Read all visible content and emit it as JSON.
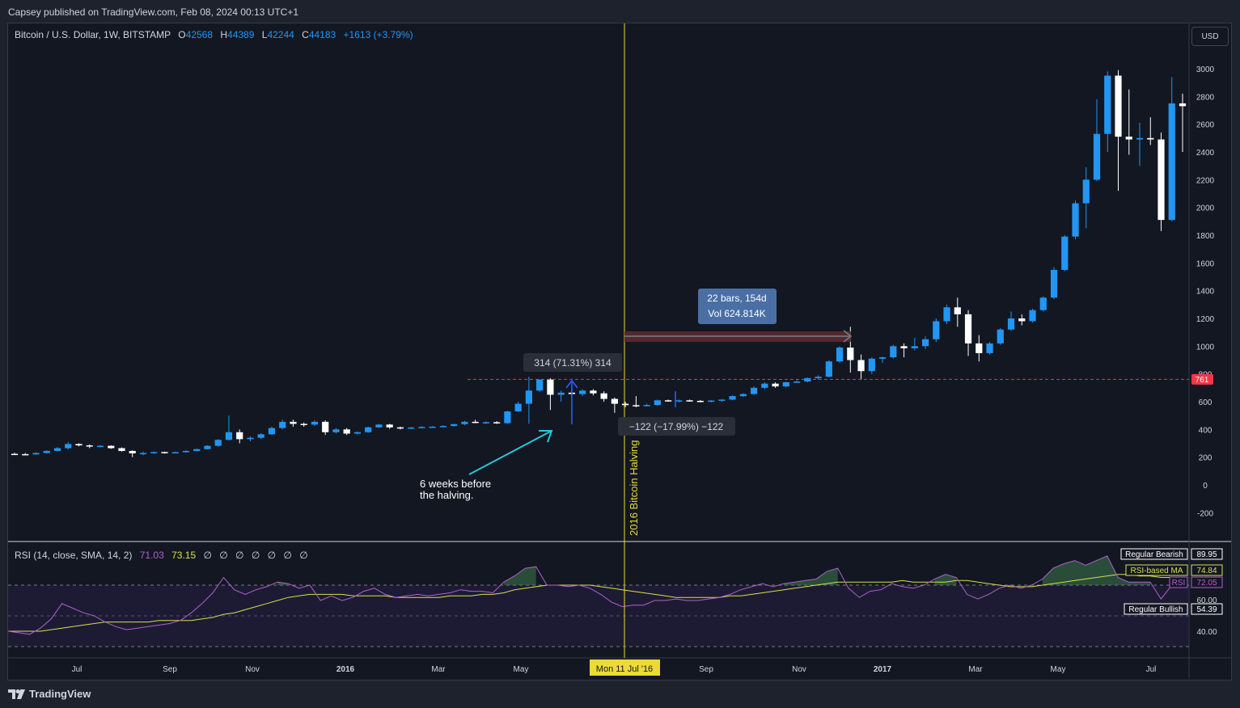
{
  "header": {
    "published": "Capsey published on TradingView.com, Feb 08, 2024 00:13 UTC+1"
  },
  "legend": {
    "symbol": "Bitcoin / U.S. Dollar, 1W, BITSTAMP",
    "o_label": "O",
    "o": "42568",
    "h_label": "H",
    "h": "44389",
    "l_label": "L",
    "l": "42244",
    "c_label": "C",
    "c": "44183",
    "change": "+1613 (+3.79%)"
  },
  "currency_button": "USD",
  "rsi_legend": {
    "label": "RSI (14, close, SMA, 14, 2)",
    "rsi": "71.03",
    "ma": "73.15",
    "empties": "∅ ∅ ∅ ∅ ∅ ∅ ∅"
  },
  "annotations": {
    "measure_up": "314 (71.31%) 314",
    "measure_down": "−122 (−17.99%) −122",
    "range_line1": "22 bars, 154d",
    "range_line2": "Vol 624.814K",
    "note_line1": "6 weeks before",
    "note_line2": "the halving.",
    "vline_label": "2016 Bitcoin Halving",
    "hline_value": "761",
    "date_marker": "Mon 11 Jul '16"
  },
  "rsi_tags": {
    "regular_bearish": "Regular Bearish",
    "regular_bearish_val": "89.95",
    "rsi_ma": "RSI-based MA",
    "rsi_ma_val": "74.84",
    "rsi": "RSI",
    "rsi_val": "72.05",
    "regular_bullish": "Regular Bullish",
    "regular_bullish_val": "54.39"
  },
  "footer": {
    "brand": "TradingView"
  },
  "colors": {
    "up": "#2196f3",
    "down": "#ffffff",
    "bg": "#131722",
    "vline": "#ebdb34",
    "rsi": "#b061d0",
    "rsi_ma": "#d7e04d",
    "hline": "#f23645"
  },
  "chart_data": {
    "type": "candlestick",
    "timeframe": "1W",
    "ylim": [
      -300,
      3300
    ],
    "y_ticks": [
      "-200",
      "0",
      "200",
      "400",
      "600",
      "800",
      "1000",
      "1200",
      "1400",
      "1600",
      "1800",
      "2000",
      "2200",
      "2400",
      "2600",
      "2800",
      "3000"
    ],
    "x_ticks": [
      "Jul",
      "Sep",
      "Nov",
      "2016",
      "Mar",
      "May",
      "Sep",
      "Nov",
      "2017",
      "Mar",
      "May",
      "Jul"
    ],
    "candles": [
      {
        "o": 224,
        "h": 232,
        "l": 216,
        "c": 222
      },
      {
        "o": 222,
        "h": 230,
        "l": 215,
        "c": 220
      },
      {
        "o": 220,
        "h": 235,
        "l": 217,
        "c": 230
      },
      {
        "o": 230,
        "h": 250,
        "l": 226,
        "c": 245
      },
      {
        "o": 245,
        "h": 272,
        "l": 240,
        "c": 265
      },
      {
        "o": 265,
        "h": 310,
        "l": 255,
        "c": 295
      },
      {
        "o": 295,
        "h": 300,
        "l": 278,
        "c": 285
      },
      {
        "o": 285,
        "h": 292,
        "l": 265,
        "c": 280
      },
      {
        "o": 280,
        "h": 288,
        "l": 270,
        "c": 282
      },
      {
        "o": 282,
        "h": 285,
        "l": 260,
        "c": 265
      },
      {
        "o": 265,
        "h": 270,
        "l": 240,
        "c": 245
      },
      {
        "o": 245,
        "h": 250,
        "l": 200,
        "c": 228
      },
      {
        "o": 228,
        "h": 240,
        "l": 215,
        "c": 230
      },
      {
        "o": 230,
        "h": 240,
        "l": 225,
        "c": 237
      },
      {
        "o": 237,
        "h": 240,
        "l": 226,
        "c": 232
      },
      {
        "o": 232,
        "h": 240,
        "l": 228,
        "c": 236
      },
      {
        "o": 236,
        "h": 250,
        "l": 232,
        "c": 245
      },
      {
        "o": 245,
        "h": 262,
        "l": 240,
        "c": 258
      },
      {
        "o": 258,
        "h": 285,
        "l": 255,
        "c": 282
      },
      {
        "o": 282,
        "h": 330,
        "l": 275,
        "c": 325
      },
      {
        "o": 325,
        "h": 500,
        "l": 320,
        "c": 380
      },
      {
        "o": 380,
        "h": 400,
        "l": 300,
        "c": 330
      },
      {
        "o": 330,
        "h": 350,
        "l": 315,
        "c": 340
      },
      {
        "o": 340,
        "h": 372,
        "l": 330,
        "c": 365
      },
      {
        "o": 365,
        "h": 420,
        "l": 360,
        "c": 410
      },
      {
        "o": 410,
        "h": 470,
        "l": 400,
        "c": 455
      },
      {
        "o": 455,
        "h": 470,
        "l": 420,
        "c": 440
      },
      {
        "o": 440,
        "h": 450,
        "l": 420,
        "c": 435
      },
      {
        "o": 435,
        "h": 465,
        "l": 425,
        "c": 455
      },
      {
        "o": 455,
        "h": 465,
        "l": 360,
        "c": 380
      },
      {
        "o": 380,
        "h": 410,
        "l": 370,
        "c": 400
      },
      {
        "o": 400,
        "h": 410,
        "l": 360,
        "c": 370
      },
      {
        "o": 370,
        "h": 385,
        "l": 365,
        "c": 380
      },
      {
        "o": 380,
        "h": 420,
        "l": 375,
        "c": 415
      },
      {
        "o": 415,
        "h": 440,
        "l": 410,
        "c": 435
      },
      {
        "o": 435,
        "h": 440,
        "l": 405,
        "c": 415
      },
      {
        "o": 415,
        "h": 420,
        "l": 400,
        "c": 408
      },
      {
        "o": 408,
        "h": 418,
        "l": 402,
        "c": 414
      },
      {
        "o": 414,
        "h": 422,
        "l": 408,
        "c": 418
      },
      {
        "o": 418,
        "h": 424,
        "l": 412,
        "c": 420
      },
      {
        "o": 420,
        "h": 430,
        "l": 414,
        "c": 425
      },
      {
        "o": 425,
        "h": 440,
        "l": 420,
        "c": 438
      },
      {
        "o": 438,
        "h": 462,
        "l": 430,
        "c": 455
      },
      {
        "o": 455,
        "h": 470,
        "l": 445,
        "c": 450
      },
      {
        "o": 450,
        "h": 458,
        "l": 440,
        "c": 452
      },
      {
        "o": 452,
        "h": 460,
        "l": 440,
        "c": 445
      },
      {
        "o": 445,
        "h": 535,
        "l": 440,
        "c": 530
      },
      {
        "o": 530,
        "h": 600,
        "l": 525,
        "c": 585
      },
      {
        "o": 585,
        "h": 780,
        "l": 440,
        "c": 680
      },
      {
        "o": 680,
        "h": 760,
        "l": 670,
        "c": 760
      },
      {
        "o": 760,
        "h": 770,
        "l": 540,
        "c": 650
      },
      {
        "o": 650,
        "h": 680,
        "l": 600,
        "c": 665
      },
      {
        "o": 665,
        "h": 690,
        "l": 630,
        "c": 655
      },
      {
        "o": 655,
        "h": 690,
        "l": 640,
        "c": 680
      },
      {
        "o": 680,
        "h": 690,
        "l": 645,
        "c": 660
      },
      {
        "o": 660,
        "h": 675,
        "l": 600,
        "c": 620
      },
      {
        "o": 620,
        "h": 630,
        "l": 520,
        "c": 585
      },
      {
        "o": 585,
        "h": 600,
        "l": 560,
        "c": 575
      },
      {
        "o": 575,
        "h": 640,
        "l": 560,
        "c": 570
      },
      {
        "o": 570,
        "h": 585,
        "l": 565,
        "c": 576
      },
      {
        "o": 576,
        "h": 615,
        "l": 570,
        "c": 610
      },
      {
        "o": 610,
        "h": 615,
        "l": 600,
        "c": 605
      },
      {
        "o": 605,
        "h": 615,
        "l": 595,
        "c": 610
      },
      {
        "o": 610,
        "h": 615,
        "l": 600,
        "c": 606
      },
      {
        "o": 606,
        "h": 612,
        "l": 595,
        "c": 600
      },
      {
        "o": 600,
        "h": 612,
        "l": 595,
        "c": 608
      },
      {
        "o": 608,
        "h": 618,
        "l": 600,
        "c": 615
      },
      {
        "o": 615,
        "h": 645,
        "l": 610,
        "c": 640
      },
      {
        "o": 640,
        "h": 660,
        "l": 635,
        "c": 655
      },
      {
        "o": 655,
        "h": 710,
        "l": 650,
        "c": 700
      },
      {
        "o": 700,
        "h": 740,
        "l": 690,
        "c": 730
      },
      {
        "o": 730,
        "h": 740,
        "l": 700,
        "c": 710
      },
      {
        "o": 710,
        "h": 745,
        "l": 705,
        "c": 740
      },
      {
        "o": 740,
        "h": 755,
        "l": 735,
        "c": 745
      },
      {
        "o": 745,
        "h": 775,
        "l": 740,
        "c": 770
      },
      {
        "o": 770,
        "h": 790,
        "l": 760,
        "c": 780
      },
      {
        "o": 780,
        "h": 900,
        "l": 775,
        "c": 890
      },
      {
        "o": 890,
        "h": 1000,
        "l": 880,
        "c": 990
      },
      {
        "o": 990,
        "h": 1140,
        "l": 810,
        "c": 900
      },
      {
        "o": 900,
        "h": 940,
        "l": 760,
        "c": 820
      },
      {
        "o": 820,
        "h": 920,
        "l": 800,
        "c": 910
      },
      {
        "o": 910,
        "h": 925,
        "l": 880,
        "c": 920
      },
      {
        "o": 920,
        "h": 1010,
        "l": 910,
        "c": 1000
      },
      {
        "o": 1000,
        "h": 1020,
        "l": 920,
        "c": 985
      },
      {
        "o": 985,
        "h": 1060,
        "l": 970,
        "c": 1000
      },
      {
        "o": 1000,
        "h": 1070,
        "l": 980,
        "c": 1050
      },
      {
        "o": 1050,
        "h": 1200,
        "l": 1030,
        "c": 1180
      },
      {
        "o": 1180,
        "h": 1300,
        "l": 1160,
        "c": 1280
      },
      {
        "o": 1280,
        "h": 1350,
        "l": 1140,
        "c": 1230
      },
      {
        "o": 1230,
        "h": 1260,
        "l": 930,
        "c": 1020
      },
      {
        "o": 1020,
        "h": 1080,
        "l": 890,
        "c": 950
      },
      {
        "o": 950,
        "h": 1030,
        "l": 940,
        "c": 1020
      },
      {
        "o": 1020,
        "h": 1130,
        "l": 1010,
        "c": 1120
      },
      {
        "o": 1120,
        "h": 1250,
        "l": 1110,
        "c": 1200
      },
      {
        "o": 1200,
        "h": 1230,
        "l": 1150,
        "c": 1180
      },
      {
        "o": 1180,
        "h": 1270,
        "l": 1170,
        "c": 1260
      },
      {
        "o": 1260,
        "h": 1360,
        "l": 1250,
        "c": 1350
      },
      {
        "o": 1350,
        "h": 1570,
        "l": 1340,
        "c": 1550
      },
      {
        "o": 1550,
        "h": 1800,
        "l": 1540,
        "c": 1790
      },
      {
        "o": 1790,
        "h": 2050,
        "l": 1770,
        "c": 2030
      },
      {
        "o": 2030,
        "h": 2290,
        "l": 1850,
        "c": 2200
      },
      {
        "o": 2200,
        "h": 2780,
        "l": 2190,
        "c": 2530
      },
      {
        "o": 2530,
        "h": 2980,
        "l": 2400,
        "c": 2950
      },
      {
        "o": 2950,
        "h": 2990,
        "l": 2120,
        "c": 2510
      },
      {
        "o": 2510,
        "h": 2850,
        "l": 2380,
        "c": 2490
      },
      {
        "o": 2490,
        "h": 2610,
        "l": 2300,
        "c": 2500
      },
      {
        "o": 2500,
        "h": 2650,
        "l": 2450,
        "c": 2490
      },
      {
        "o": 2490,
        "h": 2540,
        "l": 1830,
        "c": 1910
      },
      {
        "o": 1910,
        "h": 2940,
        "l": 1900,
        "c": 2750
      },
      {
        "o": 2750,
        "h": 2820,
        "l": 2400,
        "c": 2730
      }
    ],
    "rsi": [
      40,
      39,
      38,
      42,
      48,
      58,
      55,
      52,
      50,
      46,
      43,
      41,
      42,
      43,
      44,
      45,
      47,
      52,
      58,
      65,
      75,
      67,
      64,
      67,
      69,
      72,
      71,
      68,
      70,
      60,
      63,
      60,
      62,
      66,
      68,
      64,
      62,
      63,
      64,
      63,
      64,
      65,
      67,
      66,
      66,
      65,
      72,
      76,
      81,
      82,
      70,
      70,
      69,
      70,
      68,
      64,
      59,
      56,
      57,
      57,
      60,
      60,
      61,
      60,
      60,
      61,
      62,
      64,
      67,
      69,
      71,
      69,
      71,
      72,
      73,
      74,
      79,
      81,
      68,
      62,
      66,
      67,
      71,
      69,
      68,
      70,
      74,
      77,
      75,
      64,
      61,
      64,
      68,
      70,
      68,
      70,
      74,
      81,
      84,
      86,
      83,
      86,
      89,
      75,
      72,
      72,
      72,
      61,
      70,
      71
    ],
    "rsi_ma": [
      40,
      40,
      40,
      40,
      41,
      42,
      43,
      44,
      45,
      46,
      46,
      46,
      46,
      46,
      47,
      47,
      47,
      47,
      48,
      49,
      51,
      52,
      54,
      56,
      58,
      60,
      62,
      63,
      64,
      64,
      64,
      64,
      63,
      63,
      63,
      63,
      62,
      62,
      62,
      62,
      62,
      63,
      63,
      63,
      64,
      64,
      65,
      67,
      68,
      69,
      70,
      70,
      70,
      70,
      70,
      69,
      68,
      67,
      66,
      65,
      64,
      63,
      62,
      62,
      62,
      62,
      62,
      63,
      63,
      64,
      65,
      66,
      67,
      68,
      69,
      70,
      71,
      72,
      72,
      72,
      72,
      72,
      72,
      73,
      72,
      72,
      72,
      72,
      73,
      73,
      72,
      71,
      70,
      69,
      69,
      69,
      70,
      71,
      72,
      73,
      74,
      75,
      76,
      77,
      77,
      76,
      76,
      75,
      75,
      75
    ]
  }
}
